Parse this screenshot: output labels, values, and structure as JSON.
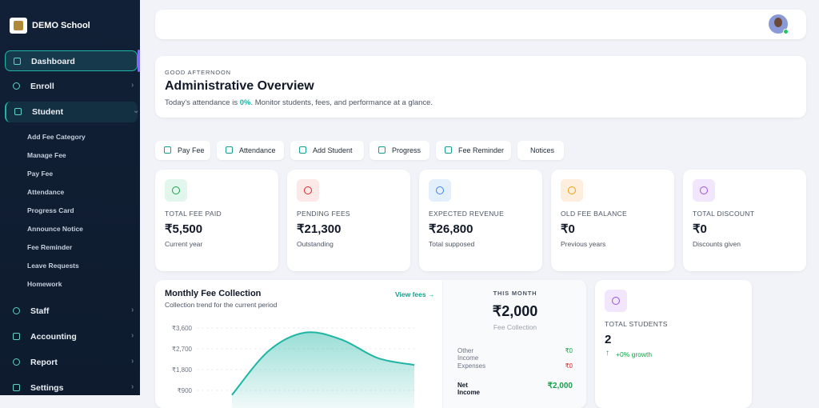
{
  "sidebar": {
    "brand": "DEMO School",
    "items": [
      {
        "label": "Dashboard"
      },
      {
        "label": "Enroll"
      },
      {
        "label": "Student",
        "children": [
          "Add Fee Category",
          "Manage Fee",
          "Pay Fee",
          "Attendance",
          "Progress Card",
          "Announce Notice",
          "Fee Reminder",
          "Leave Requests",
          "Homework"
        ]
      },
      {
        "label": "Staff"
      },
      {
        "label": "Accounting"
      },
      {
        "label": "Report"
      },
      {
        "label": "Settings"
      }
    ]
  },
  "header": {
    "greeting": "GOOD AFTERNOON",
    "title": "Administrative Overview",
    "subtitle_pre": "Today's attendance is ",
    "attendance": "0%",
    "subtitle_post": ". Monitor students, fees, and performance at a glance."
  },
  "actions": [
    "Pay Fee",
    "Attendance",
    "Add Student",
    "Progress",
    "Fee Reminder",
    "Notices"
  ],
  "stats": [
    {
      "label": "TOTAL FEE PAID",
      "value": "₹5,500",
      "note": "Current year"
    },
    {
      "label": "PENDING FEES",
      "value": "₹21,300",
      "note": "Outstanding"
    },
    {
      "label": "EXPECTED REVENUE",
      "value": "₹26,800",
      "note": "Total supposed"
    },
    {
      "label": "OLD FEE BALANCE",
      "value": "₹0",
      "note": "Previous years"
    },
    {
      "label": "TOTAL DISCOUNT",
      "value": "₹0",
      "note": "Discounts given"
    }
  ],
  "chart": {
    "type": "area",
    "title": "Monthly Fee Collection",
    "subtitle": "Collection trend for the current period",
    "link": "View fees →",
    "categories": [
      null,
      null,
      null,
      null,
      null,
      null
    ],
    "values": [
      700,
      2600,
      3400,
      3100,
      2300,
      2000
    ],
    "color": "#1fb5a4",
    "ylim": [
      0,
      3900
    ],
    "yticks": [
      {
        "value": 900,
        "label": "₹900"
      },
      {
        "value": 1800,
        "label": "₹1,800"
      },
      {
        "value": 2700,
        "label": "₹2,700"
      },
      {
        "value": 3600,
        "label": "₹3,600"
      }
    ],
    "grid": true
  },
  "this_month": {
    "heading": "THIS MONTH",
    "value": "₹2,000",
    "caption": "Fee Collection",
    "rows": [
      {
        "label": "Other Income",
        "value": "₹0"
      },
      {
        "label": "Expenses",
        "value": "₹0"
      },
      {
        "label": "Net Income",
        "value": "₹2,000"
      }
    ]
  },
  "students": {
    "label": "TOTAL STUDENTS",
    "value": "2",
    "growth": "+0% growth"
  }
}
